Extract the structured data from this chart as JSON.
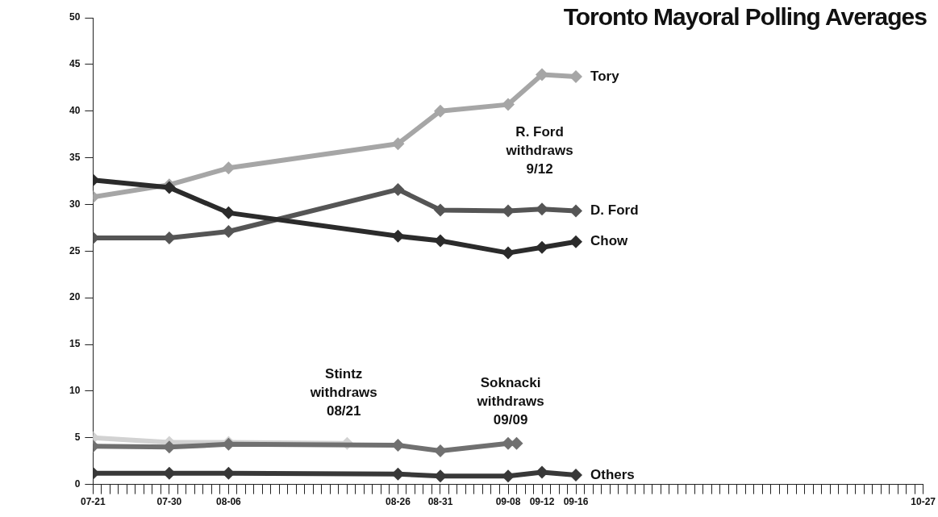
{
  "chart_data": {
    "type": "line",
    "title": "Toronto Mayoral Polling Averages",
    "marker": "diamond",
    "line_style": "solid",
    "legend": false,
    "xlim": [
      "--07-21",
      "--10-27"
    ],
    "xticks": [
      {
        "value": "--07-21",
        "label": "07-21"
      },
      {
        "value": "--07-22",
        "label": null
      },
      {
        "value": "--07-23",
        "label": null
      },
      {
        "value": "--07-24",
        "label": null
      },
      {
        "value": "--07-25",
        "label": null
      },
      {
        "value": "--07-26",
        "label": null
      },
      {
        "value": "--07-27",
        "label": null
      },
      {
        "value": "--07-28",
        "label": null
      },
      {
        "value": "--07-29",
        "label": null
      },
      {
        "value": "--07-30",
        "label": "07-30"
      },
      {
        "value": "--07-31",
        "label": null
      },
      {
        "value": "--08-01",
        "label": null
      },
      {
        "value": "--08-02",
        "label": null
      },
      {
        "value": "--08-03",
        "label": null
      },
      {
        "value": "--08-04",
        "label": null
      },
      {
        "value": "--08-05",
        "label": null
      },
      {
        "value": "--08-06",
        "label": "08-06"
      },
      {
        "value": "--08-07",
        "label": null
      },
      {
        "value": "--08-08",
        "label": null
      },
      {
        "value": "--08-09",
        "label": null
      },
      {
        "value": "--08-10",
        "label": null
      },
      {
        "value": "--08-11",
        "label": null
      },
      {
        "value": "--08-12",
        "label": null
      },
      {
        "value": "--08-13",
        "label": null
      },
      {
        "value": "--08-14",
        "label": null
      },
      {
        "value": "--08-15",
        "label": null
      },
      {
        "value": "--08-16",
        "label": null
      },
      {
        "value": "--08-17",
        "label": null
      },
      {
        "value": "--08-18",
        "label": null
      },
      {
        "value": "--08-19",
        "label": null
      },
      {
        "value": "--08-20",
        "label": null
      },
      {
        "value": "--08-21",
        "label": null
      },
      {
        "value": "--08-22",
        "label": null
      },
      {
        "value": "--08-23",
        "label": null
      },
      {
        "value": "--08-24",
        "label": null
      },
      {
        "value": "--08-25",
        "label": null
      },
      {
        "value": "--08-26",
        "label": "08-26"
      },
      {
        "value": "--08-27",
        "label": null
      },
      {
        "value": "--08-28",
        "label": null
      },
      {
        "value": "--08-29",
        "label": null
      },
      {
        "value": "--08-30",
        "label": null
      },
      {
        "value": "--08-31",
        "label": "08-31"
      },
      {
        "value": "--09-01",
        "label": null
      },
      {
        "value": "--09-02",
        "label": null
      },
      {
        "value": "--09-03",
        "label": null
      },
      {
        "value": "--09-04",
        "label": null
      },
      {
        "value": "--09-05",
        "label": null
      },
      {
        "value": "--09-06",
        "label": null
      },
      {
        "value": "--09-07",
        "label": null
      },
      {
        "value": "--09-08",
        "label": "09-08"
      },
      {
        "value": "--09-09",
        "label": null
      },
      {
        "value": "--09-10",
        "label": null
      },
      {
        "value": "--09-11",
        "label": null
      },
      {
        "value": "--09-12",
        "label": "09-12"
      },
      {
        "value": "--09-13",
        "label": null
      },
      {
        "value": "--09-14",
        "label": null
      },
      {
        "value": "--09-15",
        "label": null
      },
      {
        "value": "--09-16",
        "label": "09-16"
      },
      {
        "value": "--09-17",
        "label": null
      },
      {
        "value": "--09-18",
        "label": null
      },
      {
        "value": "--09-19",
        "label": null
      },
      {
        "value": "--09-20",
        "label": null
      },
      {
        "value": "--09-21",
        "label": null
      },
      {
        "value": "--09-22",
        "label": null
      },
      {
        "value": "--09-23",
        "label": null
      },
      {
        "value": "--09-24",
        "label": null
      },
      {
        "value": "--09-25",
        "label": null
      },
      {
        "value": "--09-26",
        "label": null
      },
      {
        "value": "--09-27",
        "label": null
      },
      {
        "value": "--09-28",
        "label": null
      },
      {
        "value": "--09-29",
        "label": null
      },
      {
        "value": "--09-30",
        "label": null
      },
      {
        "value": "--10-01",
        "label": null
      },
      {
        "value": "--10-02",
        "label": null
      },
      {
        "value": "--10-03",
        "label": null
      },
      {
        "value": "--10-04",
        "label": null
      },
      {
        "value": "--10-05",
        "label": null
      },
      {
        "value": "--10-06",
        "label": null
      },
      {
        "value": "--10-07",
        "label": null
      },
      {
        "value": "--10-08",
        "label": null
      },
      {
        "value": "--10-09",
        "label": null
      },
      {
        "value": "--10-10",
        "label": null
      },
      {
        "value": "--10-11",
        "label": null
      },
      {
        "value": "--10-12",
        "label": null
      },
      {
        "value": "--10-13",
        "label": null
      },
      {
        "value": "--10-14",
        "label": null
      },
      {
        "value": "--10-15",
        "label": null
      },
      {
        "value": "--10-16",
        "label": null
      },
      {
        "value": "--10-17",
        "label": null
      },
      {
        "value": "--10-18",
        "label": null
      },
      {
        "value": "--10-19",
        "label": null
      },
      {
        "value": "--10-20",
        "label": null
      },
      {
        "value": "--10-21",
        "label": null
      },
      {
        "value": "--10-22",
        "label": null
      },
      {
        "value": "--10-23",
        "label": null
      },
      {
        "value": "--10-24",
        "label": null
      },
      {
        "value": "--10-25",
        "label": null
      },
      {
        "value": "--10-26",
        "label": null
      },
      {
        "value": "--10-27",
        "label": "10-27"
      }
    ],
    "ylim": [
      0,
      50
    ],
    "yticks": [
      0,
      5,
      10,
      15,
      20,
      25,
      30,
      35,
      40,
      45,
      50
    ],
    "series": [
      {
        "color": "#d2d2d2",
        "x": [
          "--07-21",
          "--07-30",
          "--08-06",
          "--08-20"
        ],
        "values": [
          5.0,
          4.5,
          4.5,
          4.4
        ]
      },
      {
        "color": "#707070",
        "x": [
          "--07-21",
          "--07-30",
          "--08-06",
          "--08-26",
          "--08-31",
          "--09-08",
          "--09-09"
        ],
        "values": [
          4.1,
          4.0,
          4.3,
          4.2,
          3.6,
          4.4,
          4.4
        ]
      },
      {
        "name": "Others",
        "color": "#383838",
        "x": [
          "--07-21",
          "--07-30",
          "--08-06",
          "--08-26",
          "--08-31",
          "--09-08",
          "--09-12",
          "--09-16"
        ],
        "values": [
          1.2,
          1.2,
          1.2,
          1.1,
          0.9,
          0.9,
          1.3,
          1.0
        ]
      },
      {
        "name": "Tory",
        "color": "#a6a6a6",
        "x": [
          "--07-21",
          "--07-30",
          "--08-06",
          "--08-26",
          "--08-31",
          "--09-08",
          "--09-12",
          "--09-16"
        ],
        "values": [
          30.8,
          32.1,
          33.9,
          36.5,
          40.0,
          40.7,
          43.9,
          43.7
        ]
      },
      {
        "name": "D. Ford",
        "color": "#555555",
        "x": [
          "--07-21",
          "--07-30",
          "--08-06",
          "--08-26",
          "--08-31",
          "--09-08",
          "--09-12",
          "--09-16"
        ],
        "values": [
          26.4,
          26.4,
          27.1,
          31.6,
          29.4,
          29.3,
          29.5,
          29.3
        ]
      },
      {
        "name": "Chow",
        "color": "#2b2b2b",
        "x": [
          "--07-21",
          "--07-30",
          "--08-06",
          "--08-26",
          "--08-31",
          "--09-08",
          "--09-12",
          "--09-16"
        ],
        "values": [
          32.6,
          31.8,
          29.1,
          26.6,
          26.1,
          24.8,
          25.4,
          26.0
        ]
      }
    ],
    "annotations": [
      "R. Ford\nwithdraws\n9/12",
      "Stintz\nwithdraws\n08/21",
      "Soknacki\nwithdraws\n09/09"
    ]
  }
}
